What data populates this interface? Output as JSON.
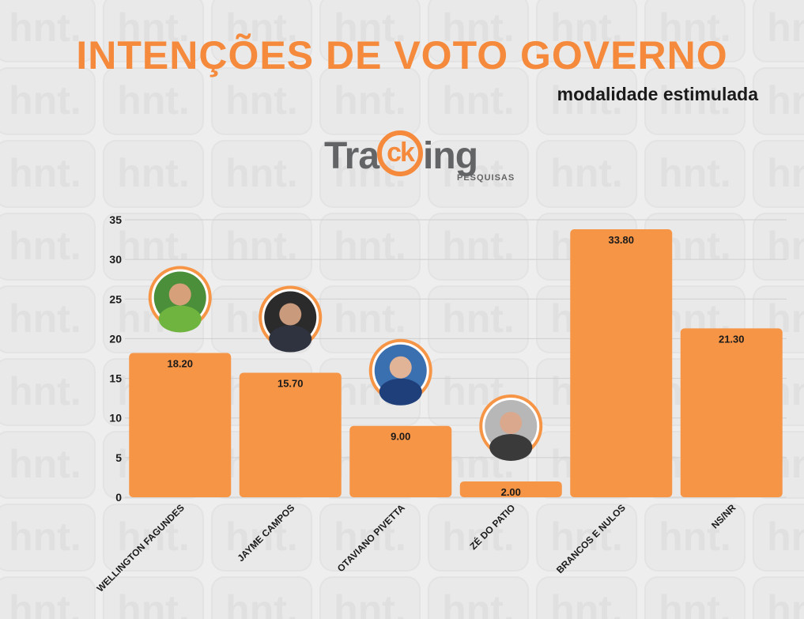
{
  "header": {
    "title": "INTENÇÕES DE VOTO GOVERNO",
    "subtitle": "modalidade estimulada"
  },
  "logo": {
    "main_pre": "Tra",
    "main_circle": "ck",
    "main_post": "ing",
    "sub": "PESQUISAS"
  },
  "watermark": {
    "text": "hnt."
  },
  "colors": {
    "accent": "#f79546",
    "title": "#f58a3c",
    "bar": "#f79546",
    "grid": "#cfcfcf",
    "text": "#1a1a1a"
  },
  "chart_data": {
    "type": "bar",
    "title": "INTENÇÕES DE VOTO GOVERNO",
    "subtitle": "modalidade estimulada",
    "categories": [
      "WELLINGTON FAGUNDES",
      "JAYME CAMPOS",
      "OTAVIANO PIVETTA",
      "ZÉ DO PATIO",
      "BRANCOS E NULOS",
      "NS/NR"
    ],
    "values": [
      18.2,
      15.7,
      9.0,
      2.0,
      33.8,
      21.3
    ],
    "data_labels": [
      "18.20",
      "15.70",
      "9.00",
      "2.00",
      "33.80",
      "21.30"
    ],
    "ylim": [
      0,
      35
    ],
    "yticks": [
      0,
      5,
      10,
      15,
      20,
      25,
      30,
      35
    ],
    "xlabel": "",
    "ylabel": "",
    "grid": true,
    "candidate_photos": [
      "WELLINGTON FAGUNDES",
      "JAYME CAMPOS",
      "OTAVIANO PIVETTA",
      "ZÉ DO PATIO"
    ]
  }
}
